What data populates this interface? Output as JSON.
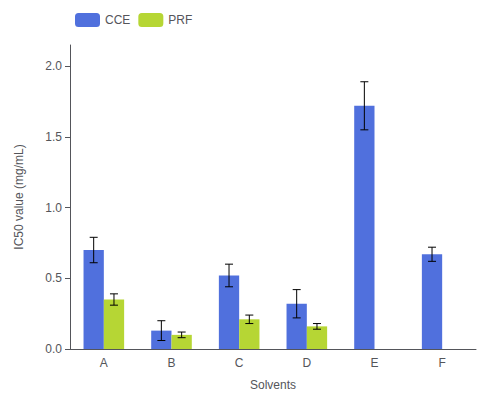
{
  "chart_data": {
    "type": "bar",
    "xlabel": "Solvents",
    "ylabel": "IC50 value (mg/mL)",
    "categories": [
      "A",
      "B",
      "C",
      "D",
      "E",
      "F"
    ],
    "series": [
      {
        "name": "CCE",
        "values": [
          0.7,
          0.13,
          0.52,
          0.32,
          1.72,
          0.67
        ],
        "errors": [
          0.09,
          0.07,
          0.08,
          0.1,
          0.17,
          0.05
        ]
      },
      {
        "name": "PRF",
        "values": [
          0.35,
          0.1,
          0.21,
          0.16,
          null,
          null
        ],
        "errors": [
          0.04,
          0.02,
          0.03,
          0.02,
          null,
          null
        ]
      }
    ],
    "ylim": [
      0,
      2.15
    ],
    "yticks": [
      {
        "value": 0.0,
        "label": "0.0"
      },
      0.5,
      {
        "value": 1.0,
        "label": "1.0"
      },
      1.5,
      {
        "value": 2.0,
        "label": "2.0"
      }
    ],
    "grid": false,
    "legend": "upper left"
  }
}
